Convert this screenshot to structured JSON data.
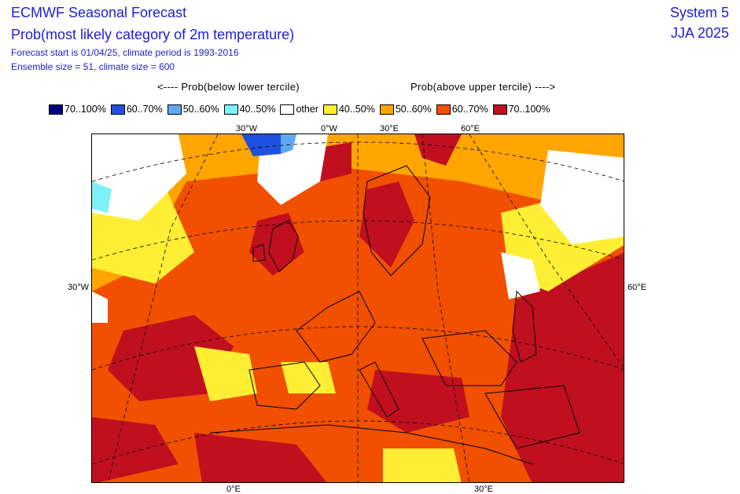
{
  "header": {
    "title": "ECMWF Seasonal Forecast",
    "subtitle": "Prob(most likely category of 2m temperature)",
    "forecast_line": "Forecast start is 01/04/25, climate period is 1993-2016",
    "ensemble_line": "Ensemble size = 51, climate size = 600",
    "system": "System 5",
    "season": "JJA 2025"
  },
  "legend": {
    "below_label": "<---- Prob(below lower tercile)",
    "above_label": "Prob(above upper tercile) ---->",
    "items": [
      {
        "label": "70..100%",
        "color": "#000080"
      },
      {
        "label": "60..70%",
        "color": "#2050e0"
      },
      {
        "label": "50..60%",
        "color": "#60a8f0"
      },
      {
        "label": "40..50%",
        "color": "#80f0f8"
      },
      {
        "label": "other",
        "color": "#ffffff"
      },
      {
        "label": "40..50%",
        "color": "#ffee33"
      },
      {
        "label": "50..60%",
        "color": "#ffa500"
      },
      {
        "label": "60..70%",
        "color": "#f05000"
      },
      {
        "label": "70..100%",
        "color": "#c01020"
      }
    ]
  },
  "map": {
    "graticule_labels": {
      "top": [
        "30°W",
        "0°W",
        "30°E",
        "60°E"
      ],
      "left": "30°W",
      "right": "60°E",
      "bottom": [
        "0°E",
        "30°E"
      ]
    }
  }
}
